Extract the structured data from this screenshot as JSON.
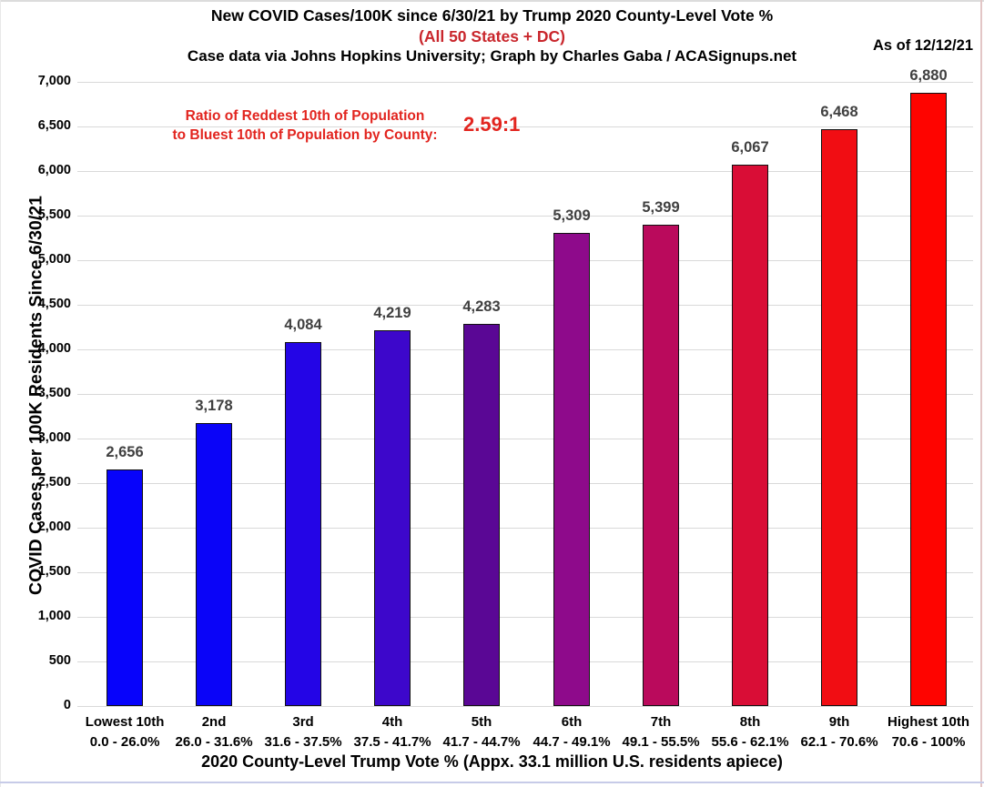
{
  "header": {
    "title": "New COVID Cases/100K since 6/30/21 by Trump 2020 County-Level Vote %",
    "subtitle": "(All 50 States + DC)",
    "subtitle_color": "#c9262c",
    "credit": "Case data via Johns Hopkins University; Graph by Charles Gaba / ACASignups.net",
    "as_of": "As of 12/12/21"
  },
  "annotation": {
    "line1": "Ratio of Reddest 10th of Population",
    "line2": "to Bluest 10th of Population by County:",
    "ratio": "2.59:1",
    "color": "#e2251f"
  },
  "chart_data": {
    "type": "bar",
    "title": "New COVID Cases/100K since 6/30/21 by Trump 2020 County-Level Vote %",
    "categories": [
      "Lowest 10th",
      "2nd",
      "3rd",
      "4th",
      "5th",
      "6th",
      "7th",
      "8th",
      "9th",
      "Highest 10th"
    ],
    "category_ranges": [
      "0.0 - 26.0%",
      "26.0 - 31.6%",
      "31.6 - 37.5%",
      "37.5 - 41.7%",
      "41.7 - 44.7%",
      "44.7 - 49.1%",
      "49.1 - 55.5%",
      "55.6 - 62.1%",
      "62.1 - 70.6%",
      "70.6 - 100%"
    ],
    "values": [
      2656,
      3178,
      4084,
      4219,
      4283,
      5309,
      5399,
      6067,
      6468,
      6880
    ],
    "value_labels": [
      "2,656",
      "3,178",
      "4,084",
      "4,219",
      "4,283",
      "5,309",
      "5,399",
      "6,067",
      "6,468",
      "6,880"
    ],
    "bar_colors": [
      "#0703fb",
      "#0a04f8",
      "#2405e6",
      "#3d07cb",
      "#5a0795",
      "#8e0a8b",
      "#ba0a5c",
      "#d90d36",
      "#f10d13",
      "#fe0400"
    ],
    "xlabel": "2020 County-Level Trump Vote % (Appx. 33.1 million U.S. residents apiece)",
    "ylabel": "COVID Cases per 100K Residents Since 6/30/21",
    "ylim": [
      0,
      7000
    ],
    "ytick_step": 500,
    "ytick_labels": [
      "0",
      "500",
      "1,000",
      "1,500",
      "2,000",
      "2,500",
      "3,000",
      "3,500",
      "4,000",
      "4,500",
      "5,000",
      "5,500",
      "6,000",
      "6,500",
      "7,000"
    ],
    "grid": true,
    "gridline_color": "#d9d9d9",
    "value_label_color": "#404040",
    "legend": "none"
  }
}
